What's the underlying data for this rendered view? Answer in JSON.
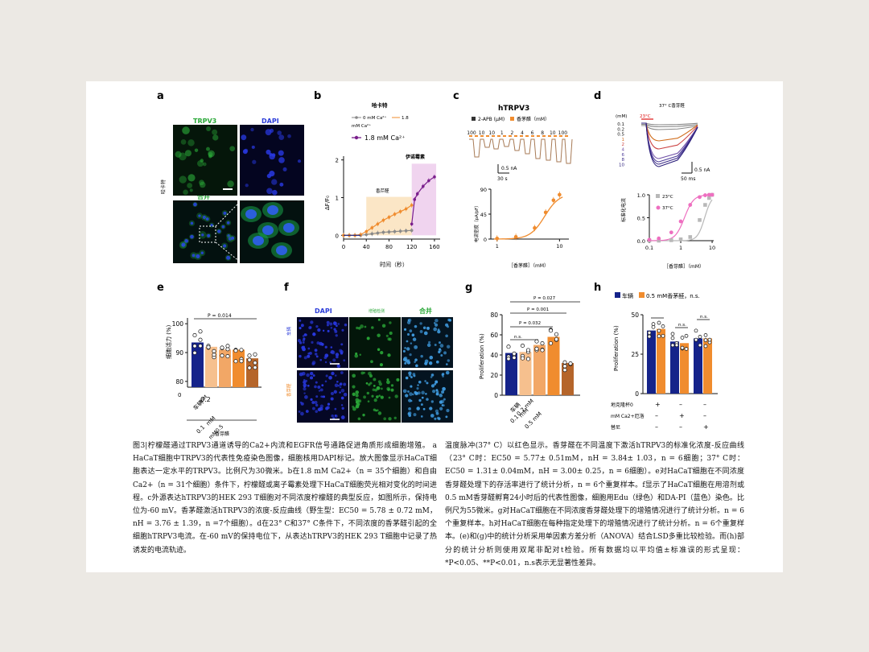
{
  "panel_labels": [
    "a",
    "b",
    "c",
    "d",
    "e",
    "f",
    "g",
    "h"
  ],
  "panel_a": {
    "channel_trpv3": "TRPV3",
    "channel_dapi": "DAPI",
    "channel_merge": "合并",
    "side_label": "哈卡特"
  },
  "panel_b": {
    "title": "哈卡特",
    "legend_0mm": "0 mM Ca²⁺",
    "legend_18": "1.8",
    "legend_unit": "mM Ca²⁺",
    "legend_18mm": "1.8 mM Ca²⁺",
    "annot_carvacrol": "香芹醛",
    "annot_ionomycin": "伊诺霉素",
    "ylabel": "ΔF/F₀",
    "xlabel": "时间（秒）",
    "xticks": [
      "0",
      "40",
      "80",
      "120",
      "160"
    ],
    "yticks": [
      "0",
      "1",
      "2"
    ]
  },
  "panel_c": {
    "title": "hTRPV3",
    "legend_2apb": "2-APB (μM)",
    "legend_carvacrol": "香茅醛（mM）",
    "conc_labels": [
      "100",
      "10",
      "10",
      "1",
      "2",
      "4",
      "6",
      "8",
      "10",
      "100"
    ],
    "scale_current": "0.5 nA",
    "scale_time": "30 s",
    "ylabel": "电流密度（pA/pF）",
    "xlabel": "［香茅醛］（mM）",
    "xticks": [
      "1",
      "10"
    ],
    "yticks": [
      "0",
      "45",
      "90"
    ]
  },
  "panel_d": {
    "title": "37° C香芽醛",
    "conc_unit": "(mM)",
    "temp_label": "23°C",
    "conc_list": [
      "0.1",
      "0.2",
      "0.5",
      "1",
      "2",
      "4",
      "6",
      "8",
      "10"
    ],
    "scale_current": "0.5 nA",
    "scale_time": "50 ms",
    "legend_23": "23°C",
    "legend_37": "37°C",
    "ylabel": "标准化电流",
    "xlabel": "［香芽醛］（mM）",
    "xticks": [
      "0.1",
      "1",
      "10"
    ],
    "yticks": [
      "0.0",
      "0.5",
      "1.0"
    ]
  },
  "panel_e": {
    "pvalue": "P = 0.014",
    "ylabel": "细胞活力 (%)",
    "yticks": [
      "80",
      "90",
      "100"
    ],
    "xtick_0": "车辆",
    "xtick_0_unit": "mM",
    "xtick_02": "0.2",
    "xtick_01": "0.1",
    "xtick_mm": "mM",
    "xtick_05": "mM0.5",
    "group_label": "香芽醛",
    "zero": "0"
  },
  "panel_f": {
    "col_dapi": "DAPI",
    "col_edu": "增殖检测",
    "col_merge": "合并",
    "row_vehicle": "车辆",
    "row_carvacrol": "香芽醛"
  },
  "panel_g": {
    "p1": "P = 0.027",
    "p2": "P = 0.001",
    "p3": "P = 0.032",
    "ns": "n.s.",
    "ylabel": "Proliferation (%)",
    "yticks": [
      "0",
      "20",
      "40",
      "60",
      "80"
    ],
    "xtick_0": "车辆",
    "xtick_02": "0.2 mM",
    "xtick_05": "0.5 mM",
    "xtick_01": "0.1",
    "xtick_mm": "mM"
  },
  "panel_h": {
    "legend_vehicle": "车辆",
    "legend_carvacrol": "0.5 mM香茅醛，n.s.",
    "ns1": "n.s.",
    "ns2": "n.s.",
    "ylabel": "Proliferation (%)",
    "yticks": [
      "0",
      "25",
      "50"
    ],
    "row1_label": "地克隆杯0",
    "row2_label": "mM Ca2+厄洛",
    "row3_label": "替尼",
    "row1_marks": [
      "+",
      "–",
      "–"
    ],
    "row2_marks": [
      "–",
      "+",
      "–"
    ],
    "row3_marks": [
      "–",
      "–",
      "+"
    ]
  },
  "caption_left": "图3|柠檬醛通过TRPV3通道诱导的Ca2+内流和EGFR信号通路促进角质形成细胞增殖。 a HaCaT细胞中TRPV3的代表性免疫染色图像，细胞核用DAPI标记。放大图像显示HaCaT细胞表达一定水平的TRPV3。比例尺为30微米。b在1.8 mM Ca2+（n = 35个细胞）和自由Ca2+（n = 31个细胞）条件下，柠檬醛或离子霉素处理下HaCaT细胞荧光相对变化的时间进程。c外源表达hTRPV3的HEK 293 T细胞对不同浓度柠檬醛的典型反应，如图所示，保持电位为-60 mV。香茅醛激活hTRPV3的浓度-反应曲线（野生型：EC50 = 5.78 ± 0.72 mM，nH = 3.76 ± 1.39，n =7个细胞）。d在23° C和37° C条件下，不同浓度的香茅醛引起的全细胞hTRPV3电流。在-60 mV的保持电位下，从表达hTRPV3的HEK 293 T细胞中记录了热诱发的电流轨迹。",
  "caption_right": "温度脉冲(37° C）以红色显示。香芽醛在不同温度下激活hTRPV3的标准化浓度-反应曲线（23° C时：EC50 = 5.77± 0.51mM，nH = 3.84± 1.03，n = 6细胞；37° C时：EC50 = 1.31± 0.04mM，nH = 3.00± 0.25，n = 6细胞）。e对HaCaT细胞在不同浓度香芽醛处理下的存活率进行了统计分析，n = 6个重复样本。f显示了HaCaT细胞在用溶剂或0.5 mM香芽醛孵育24小时后的代表性图像，细胞用Edu（绿色）和DA-PI（蓝色）染色。比例尺为55微米。g对HaCaT细胞在不同浓度香芽醛处理下的增殖情况进行了统计分析。n = 6个重复样本。h对HaCaT细胞在每种指定处理下的增殖情况进行了统计分析。n = 6个重复样本。(e)和(g)中的统计分析采用单因素方差分析（ANOVA）结合LSD多重比较检验。而(h)部分的统计分析则使用双尾非配对t检验。所有数据均以平均值±标准误的形式呈现：*P<0.05、**P<0.01，n.s表示无显著性差异。",
  "colors": {
    "orange": "#f08c2e",
    "purple": "#7a1f8c",
    "navy": "#15238a",
    "pink": "#ee6fc0",
    "gray": "#8a8a8a",
    "brown": "#b5652a"
  },
  "chart_data": [
    {
      "type": "line",
      "panel": "b",
      "title": "哈卡特",
      "xlabel": "时间（秒）",
      "ylabel": "ΔF/F₀",
      "xlim": [
        0,
        170
      ],
      "ylim": [
        -0.1,
        2.1
      ],
      "series": [
        {
          "name": "0 mM Ca²⁺",
          "x": [
            0,
            10,
            20,
            30,
            40,
            50,
            60,
            70,
            80,
            90,
            100,
            110,
            120
          ],
          "y": [
            0,
            0,
            0,
            0,
            0.02,
            0.04,
            0.06,
            0.08,
            0.09,
            0.1,
            0.11,
            0.12,
            0.13
          ]
        },
        {
          "name": "1.8 mM Ca²⁺",
          "x": [
            0,
            10,
            20,
            30,
            40,
            50,
            60,
            70,
            80,
            90,
            100,
            110,
            120
          ],
          "y": [
            0,
            0,
            0,
            0.02,
            0.1,
            0.2,
            0.3,
            0.4,
            0.48,
            0.56,
            0.63,
            0.7,
            0.8
          ]
        },
        {
          "name": "伊诺霉素",
          "x": [
            120,
            125,
            130,
            140,
            150,
            160
          ],
          "y": [
            0.3,
            0.95,
            1.1,
            1.3,
            1.45,
            1.55
          ]
        }
      ]
    },
    {
      "type": "line",
      "panel": "c",
      "xlabel": "［香茅醛］（mM）",
      "ylabel": "电流密度（pA/pF）",
      "ylim": [
        0,
        90
      ],
      "series": [
        {
          "name": "香茅醛",
          "x": [
            1,
            2,
            4,
            6,
            8,
            10
          ],
          "y": [
            1,
            4,
            20,
            48,
            70,
            80
          ]
        }
      ]
    },
    {
      "type": "scatter",
      "panel": "d",
      "xlabel": "［香芽醛］（mM）",
      "ylabel": "标准化电流",
      "ylim": [
        0,
        1
      ],
      "series": [
        {
          "name": "23°C",
          "x": [
            0.1,
            0.2,
            0.5,
            1,
            2,
            4,
            6,
            8,
            10
          ],
          "y": [
            0,
            0,
            0.01,
            0.03,
            0.08,
            0.45,
            0.78,
            0.93,
            1.0
          ]
        },
        {
          "name": "37°C",
          "x": [
            0.1,
            0.2,
            0.5,
            1,
            2,
            4,
            6,
            8,
            10
          ],
          "y": [
            0.02,
            0.05,
            0.18,
            0.42,
            0.78,
            0.95,
            0.99,
            1.0,
            1.0
          ]
        }
      ]
    },
    {
      "type": "bar",
      "panel": "e",
      "ylabel": "细胞活力 (%)",
      "ylim": [
        80,
        100
      ],
      "categories": [
        "车辆",
        "0.1 mM",
        "0.2 mM",
        "0.5 mM",
        "1 mM"
      ],
      "values": [
        93.5,
        92,
        91,
        91,
        88
      ]
    },
    {
      "type": "bar",
      "panel": "g",
      "ylabel": "Proliferation (%)",
      "ylim": [
        0,
        80
      ],
      "categories": [
        "车辆",
        "0.1 mM",
        "0.2 mM",
        "0.5 mM",
        "1 mM"
      ],
      "values": [
        42,
        43,
        50,
        58,
        32
      ]
    },
    {
      "type": "bar",
      "panel": "h",
      "ylabel": "Proliferation (%)",
      "ylim": [
        0,
        50
      ],
      "categories": [
        "地克隆杯0",
        "mM Ca2+厄洛",
        "替尼"
      ],
      "series": [
        {
          "name": "车辆",
          "values": [
            40,
            33,
            35
          ]
        },
        {
          "name": "0.5 mM香茅醛",
          "values": [
            41,
            32,
            35
          ]
        }
      ]
    }
  ]
}
